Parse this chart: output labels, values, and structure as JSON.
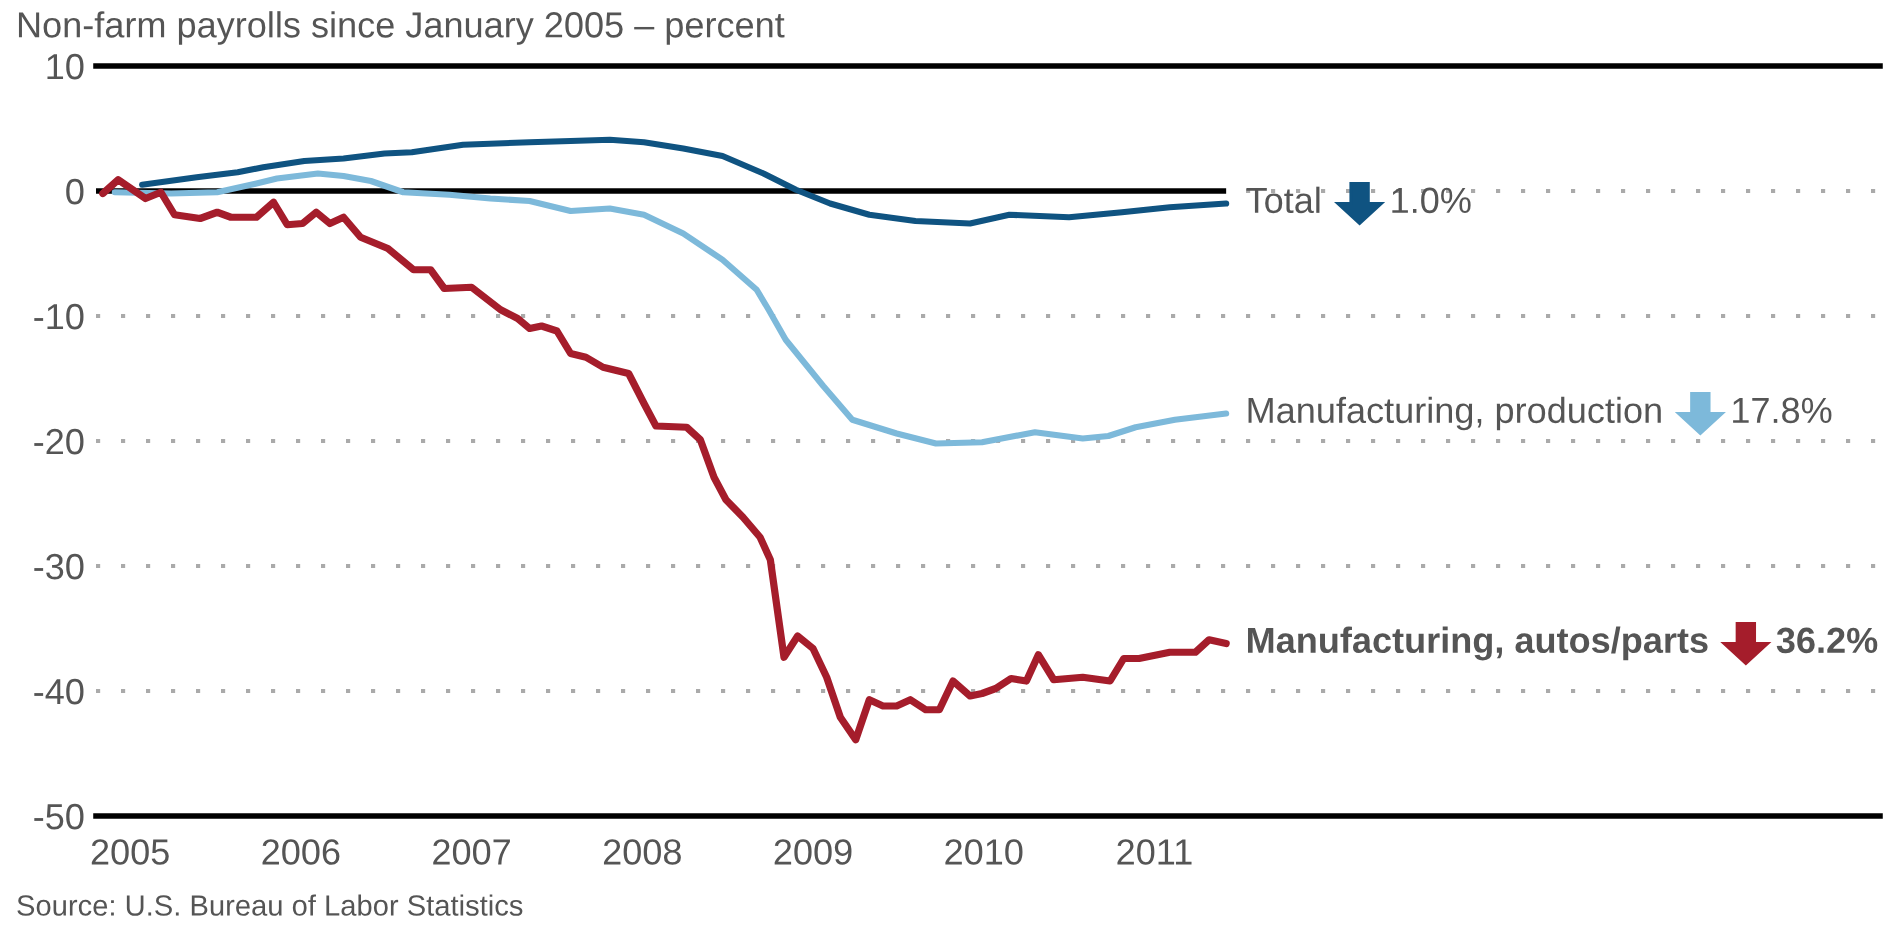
{
  "chart_data": {
    "type": "line",
    "title": "Non-farm payrolls since January 2005 – percent",
    "xlim": [
      2004.8,
      2015.25
    ],
    "xticks": [
      2005,
      2006,
      2007,
      2008,
      2009,
      2010,
      2011
    ],
    "ylim": [
      -50,
      10
    ],
    "yticks": [
      10,
      0,
      -10,
      -20,
      -30,
      -40,
      -50
    ],
    "grid": "y",
    "legend": "right",
    "ref_lines": [
      {
        "axis": "y",
        "value": 0,
        "color": "#000000"
      }
    ],
    "series": [
      {
        "name": "Total",
        "color": "#0f5381",
        "x": [
          2005.07,
          2005.39,
          2005.63,
          2005.78,
          2006.02,
          2006.25,
          2006.49,
          2006.65,
          2006.95,
          2007.34,
          2007.58,
          2007.81,
          2008.01,
          2008.24,
          2008.47,
          2008.71,
          2008.9,
          2009.1,
          2009.33,
          2009.6,
          2009.92,
          2010.15,
          2010.5,
          2010.81,
          2011.09,
          2011.42
        ],
        "values": [
          0.5,
          1.1,
          1.5,
          1.9,
          2.4,
          2.6,
          3.0,
          3.1,
          3.7,
          3.9,
          4.0,
          4.1,
          3.9,
          3.4,
          2.8,
          1.4,
          0.1,
          -1.0,
          -1.9,
          -2.4,
          -2.6,
          -1.9,
          -2.1,
          -1.7,
          -1.3,
          -1.0
        ]
      },
      {
        "name": "Manufacturing, production",
        "color": "#7db9da",
        "x": [
          2004.91,
          2005.24,
          2005.51,
          2005.74,
          2005.86,
          2006.1,
          2006.25,
          2006.41,
          2006.6,
          2006.87,
          2007.11,
          2007.34,
          2007.58,
          2007.81,
          2008.01,
          2008.24,
          2008.47,
          2008.67,
          2008.74,
          2008.84,
          2009.06,
          2009.23,
          2009.49,
          2009.72,
          2009.99,
          2010.3,
          2010.58,
          2010.73,
          2010.89,
          2011.12,
          2011.42
        ],
        "values": [
          -0.1,
          -0.2,
          -0.1,
          0.6,
          1.0,
          1.4,
          1.2,
          0.8,
          -0.1,
          -0.3,
          -0.6,
          -0.8,
          -1.6,
          -1.4,
          -1.9,
          -3.4,
          -5.5,
          -7.9,
          -9.5,
          -11.9,
          -15.6,
          -18.3,
          -19.4,
          -20.2,
          -20.1,
          -19.3,
          -19.8,
          -19.6,
          -18.9,
          -18.3,
          -17.8
        ]
      },
      {
        "name": "Manufacturing, autos/parts",
        "color": "#a51d2b",
        "x": [
          2004.84,
          2004.93,
          2005.09,
          2005.18,
          2005.26,
          2005.41,
          2005.51,
          2005.59,
          2005.74,
          2005.84,
          2005.92,
          2006.01,
          2006.09,
          2006.17,
          2006.25,
          2006.35,
          2006.51,
          2006.66,
          2006.76,
          2006.84,
          2007.0,
          2007.17,
          2007.27,
          2007.34,
          2007.41,
          2007.5,
          2007.58,
          2007.67,
          2007.77,
          2007.92,
          2008.01,
          2008.08,
          2008.26,
          2008.34,
          2008.42,
          2008.49,
          2008.59,
          2008.69,
          2008.75,
          2008.83,
          2008.91,
          2009.0,
          2009.08,
          2009.16,
          2009.25,
          2009.33,
          2009.41,
          2009.49,
          2009.57,
          2009.66,
          2009.74,
          2009.82,
          2009.92,
          2009.99,
          2010.07,
          2010.16,
          2010.25,
          2010.32,
          2010.41,
          2010.58,
          2010.74,
          2010.82,
          2010.91,
          2011.09,
          2011.24,
          2011.32,
          2011.42
        ],
        "values": [
          -0.2,
          0.9,
          -0.6,
          -0.1,
          -1.9,
          -2.2,
          -1.7,
          -2.1,
          -2.1,
          -0.9,
          -2.7,
          -2.6,
          -1.7,
          -2.6,
          -2.1,
          -3.7,
          -4.6,
          -6.3,
          -6.3,
          -7.8,
          -7.7,
          -9.5,
          -10.2,
          -11.0,
          -10.8,
          -11.2,
          -13.0,
          -13.3,
          -14.1,
          -14.6,
          -17.0,
          -18.8,
          -18.9,
          -19.9,
          -22.9,
          -24.7,
          -26.1,
          -27.7,
          -29.5,
          -37.3,
          -35.6,
          -36.6,
          -38.9,
          -42.1,
          -43.9,
          -40.7,
          -41.2,
          -41.2,
          -40.7,
          -41.5,
          -41.5,
          -39.2,
          -40.4,
          -40.2,
          -39.8,
          -39.0,
          -39.2,
          -37.1,
          -39.1,
          -38.9,
          -39.2,
          -37.4,
          -37.4,
          -36.9,
          -36.9,
          -35.9,
          -36.2
        ]
      }
    ],
    "annotations": [
      "1.0%",
      "17.8%",
      "36.2%",
      "Source: U.S. Bureau of Labor Statistics"
    ]
  }
}
